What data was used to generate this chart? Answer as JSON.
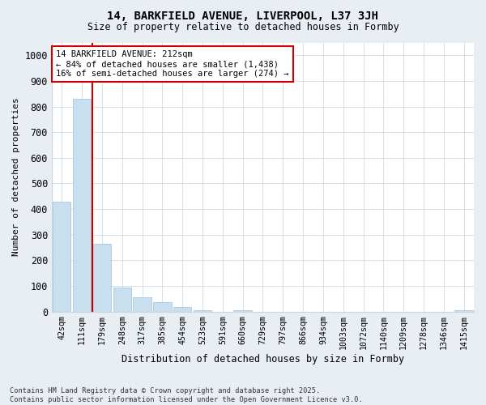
{
  "title1": "14, BARKFIELD AVENUE, LIVERPOOL, L37 3JH",
  "title2": "Size of property relative to detached houses in Formby",
  "xlabel": "Distribution of detached houses by size in Formby",
  "ylabel": "Number of detached properties",
  "categories": [
    "42sqm",
    "111sqm",
    "179sqm",
    "248sqm",
    "317sqm",
    "385sqm",
    "454sqm",
    "523sqm",
    "591sqm",
    "660sqm",
    "729sqm",
    "797sqm",
    "866sqm",
    "934sqm",
    "1003sqm",
    "1072sqm",
    "1140sqm",
    "1209sqm",
    "1278sqm",
    "1346sqm",
    "1415sqm"
  ],
  "values": [
    430,
    830,
    265,
    95,
    55,
    38,
    18,
    5,
    0,
    5,
    0,
    0,
    0,
    0,
    0,
    0,
    0,
    0,
    0,
    0,
    5
  ],
  "bar_color": "#c8dff0",
  "bar_edgecolor": "#a0c0d8",
  "vline_x_index": 2,
  "vline_color": "#cc0000",
  "annotation_text": "14 BARKFIELD AVENUE: 212sqm\n← 84% of detached houses are smaller (1,438)\n16% of semi-detached houses are larger (274) →",
  "annotation_box_color": "#cc0000",
  "ylim": [
    0,
    1050
  ],
  "yticks": [
    0,
    100,
    200,
    300,
    400,
    500,
    600,
    700,
    800,
    900,
    1000
  ],
  "footer": "Contains HM Land Registry data © Crown copyright and database right 2025.\nContains public sector information licensed under the Open Government Licence v3.0.",
  "bg_color": "#e8eef4",
  "plot_bg_color": "#ffffff"
}
